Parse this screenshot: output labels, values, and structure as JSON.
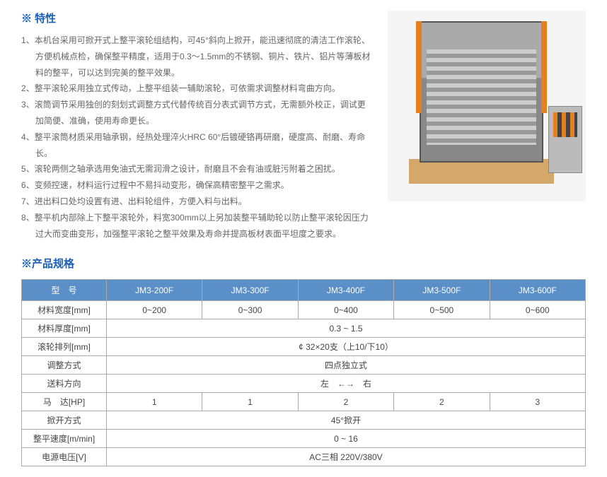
{
  "features": {
    "title": "※ 特性",
    "items": [
      "本机台采用可掀开式上整平滚轮组结构，可45°斜向上掀开，能迅速彻底的清洁工作滚轮、方便机械点检，确保整平精度，适用于0.3～1.5mm的不锈钢、铜片、铁片、铝片等薄板材料的整平，可以达到完美的整平效果。",
      "整平滚轮采用独立式传动，上整平组装一辅助滚轮，可依需求调整材料弯曲方向。",
      "滚筒调节采用独创的刻划式调整方式代替传统百分表式调节方式，无需额外校正，调试更加简便、准确，使用寿命更长。",
      "整平滚筒材质采用轴承钢，经热处理淬火HRC 60°后镀硬铬再研磨，硬度高、耐磨、寿命长。",
      "滚轮两侧之轴承选用免油式无需润滑之设计，耐磨且不会有油或脏污附着之困扰。",
      "变频控速，材料运行过程中不易抖动变形，确保高精密整平之需求。",
      "进出料口处均设置有进、出料轮组件，方便入料与出料。",
      "整平机内部除上下整平滚轮外，料宽300mm以上另加装整平辅助轮以防止整平滚轮因压力过大而变曲变形，加强整平滚轮之整平效果及寿命并提高板材表面平坦度之要求。"
    ]
  },
  "specs": {
    "title": "※产品规格",
    "header_model": "型　号",
    "models": [
      "JM3-200F",
      "JM3-300F",
      "JM3-400F",
      "JM3-500F",
      "JM3-600F"
    ],
    "rows": {
      "width": {
        "label": "材料宽度[mm]",
        "cells": [
          "0~200",
          "0~300",
          "0~400",
          "0~500",
          "0~600"
        ]
      },
      "thick": {
        "label": "材料厚度[mm]",
        "span": "0.3 ~ 1.5"
      },
      "roller": {
        "label": "滚轮排列[mm]",
        "span": "¢ 32×20支（上10/下10）"
      },
      "adjust": {
        "label": "调整方式",
        "span": "四点独立式"
      },
      "feeddir": {
        "label": "送料方向",
        "span": "左　←→　右"
      },
      "motor": {
        "label": "马　达[HP]",
        "cells": [
          "1",
          "1",
          "2",
          "2",
          "3"
        ]
      },
      "open": {
        "label": "掀开方式",
        "span": "45°掀开"
      },
      "speed": {
        "label": "整平速度[m/min]",
        "span": "0 ~ 16"
      },
      "power": {
        "label": "电源电压[V]",
        "span": "AC三相 220V/380V"
      }
    }
  },
  "colors": {
    "brand_blue": "#1a5fb4",
    "header_bg": "#5b8fc7",
    "text_gray": "#666666",
    "border": "#aaaaaa"
  }
}
